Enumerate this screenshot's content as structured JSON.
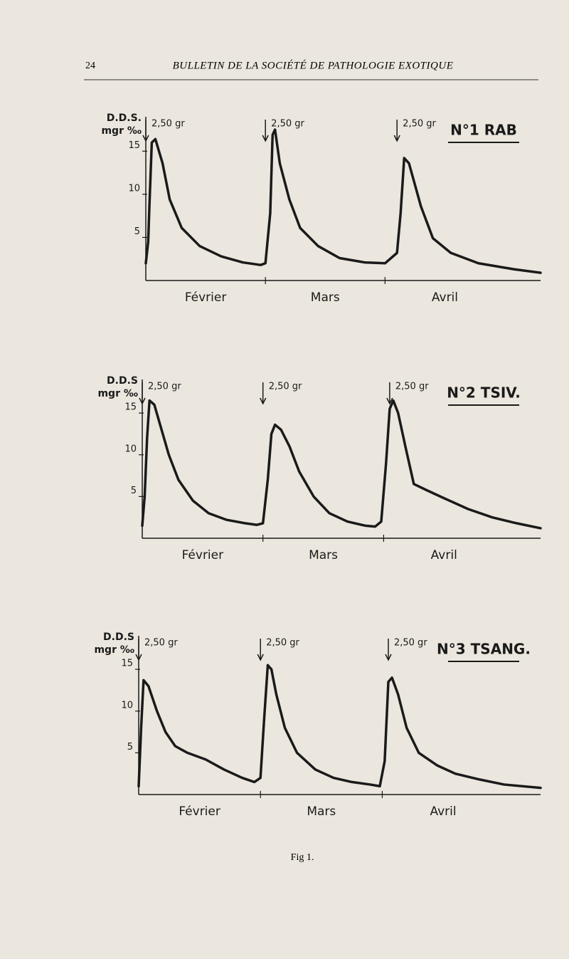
{
  "header": {
    "page_number": "24",
    "title": "BULLETIN DE LA SOCIÉTÉ DE PATHOLOGIE EXOTIQUE"
  },
  "chart_data": [
    {
      "type": "line",
      "title": "N°1 RAB",
      "ylabel": [
        "D.D.S.",
        "mgr ‰"
      ],
      "xlim": [
        0,
        3.3
      ],
      "xticks": [
        {
          "value": 0.5,
          "label": "Février"
        },
        {
          "value": 1.5,
          "label": "Mars"
        },
        {
          "value": 2.5,
          "label": "Avril"
        }
      ],
      "ylim": [
        0,
        18
      ],
      "yticks": [
        5,
        10,
        15
      ],
      "series": [
        {
          "color": "#1a1a1a",
          "x": [
            0,
            0.02,
            0.03,
            0.05,
            0.08,
            0.14,
            0.2,
            0.3,
            0.45,
            0.63,
            0.81,
            0.96,
            1.0,
            1.04,
            1.06,
            1.08,
            1.12,
            1.2,
            1.29,
            1.44,
            1.62,
            1.83,
            2.0,
            2.1,
            2.13,
            2.16,
            2.2,
            2.3,
            2.4,
            2.55,
            2.78,
            3.08,
            3.3
          ],
          "values": [
            2,
            4.5,
            8.6,
            16,
            16.4,
            13.6,
            9.4,
            6.1,
            4,
            2.8,
            2.1,
            1.8,
            2,
            7.8,
            16.9,
            17.5,
            13.6,
            9.4,
            6.1,
            4,
            2.6,
            2.1,
            2,
            3.2,
            7.8,
            14.2,
            13.6,
            8.6,
            4.9,
            3.2,
            2,
            1.3,
            0.9
          ]
        }
      ],
      "annotations": [
        {
          "x": 0,
          "label": "2,50 gr"
        },
        {
          "x": 1.0,
          "label": "2,50 gr"
        },
        {
          "x": 2.1,
          "label": "2,50 gr"
        }
      ]
    },
    {
      "type": "line",
      "title": "N°2 TSIV.",
      "ylabel": [
        "D.D.S",
        "mgr ‰"
      ],
      "xlim": [
        0,
        3.3
      ],
      "xticks": [
        {
          "value": 0.5,
          "label": "Février"
        },
        {
          "value": 1.5,
          "label": "Mars"
        },
        {
          "value": 2.5,
          "label": "Avril"
        }
      ],
      "ylim": [
        0,
        18
      ],
      "yticks": [
        5,
        10,
        15
      ],
      "series": [
        {
          "color": "#1a1a1a",
          "x": [
            0,
            0.02,
            0.04,
            0.06,
            0.1,
            0.15,
            0.22,
            0.3,
            0.42,
            0.55,
            0.7,
            0.85,
            0.95,
            1.0,
            1.04,
            1.07,
            1.1,
            1.15,
            1.22,
            1.3,
            1.42,
            1.55,
            1.7,
            1.85,
            1.93,
            1.98,
            2.02,
            2.05,
            2.08,
            2.12,
            2.18,
            2.25,
            2.35,
            2.5,
            2.7,
            2.9,
            3.1,
            3.3
          ],
          "values": [
            1.5,
            5,
            12,
            16.5,
            16,
            13.5,
            10,
            7,
            4.5,
            3,
            2.2,
            1.8,
            1.6,
            1.8,
            7,
            12.5,
            13.6,
            13,
            11,
            8,
            5,
            3,
            2,
            1.5,
            1.4,
            2,
            9,
            15.5,
            16.5,
            15,
            11,
            6.5,
            5.8,
            4.8,
            3.5,
            2.5,
            1.8,
            1.2
          ]
        }
      ],
      "annotations": [
        {
          "x": 0,
          "label": "2,50 gr"
        },
        {
          "x": 1.0,
          "label": "2,50 gr"
        },
        {
          "x": 2.05,
          "label": "2,50 gr"
        }
      ]
    },
    {
      "type": "line",
      "title": "N°3 TSANG.",
      "ylabel": [
        "D.D.S",
        "mgr ‰"
      ],
      "xlim": [
        0,
        3.3
      ],
      "xticks": [
        {
          "value": 0.5,
          "label": "Février"
        },
        {
          "value": 1.5,
          "label": "Mars"
        },
        {
          "value": 2.5,
          "label": "Avril"
        }
      ],
      "ylim": [
        0,
        18
      ],
      "yticks": [
        5,
        10,
        15
      ],
      "series": [
        {
          "color": "#1a1a1a",
          "x": [
            0,
            0.02,
            0.04,
            0.08,
            0.15,
            0.22,
            0.3,
            0.4,
            0.55,
            0.7,
            0.85,
            0.95,
            1.0,
            1.03,
            1.06,
            1.09,
            1.13,
            1.2,
            1.3,
            1.45,
            1.6,
            1.75,
            1.9,
            1.98,
            2.02,
            2.05,
            2.08,
            2.13,
            2.2,
            2.3,
            2.45,
            2.6,
            2.8,
            3.0,
            3.3
          ],
          "values": [
            1,
            8,
            13.7,
            13,
            10,
            7.5,
            5.8,
            5,
            4.2,
            3,
            2,
            1.5,
            2,
            9,
            15.5,
            15,
            12,
            8,
            5,
            3,
            2,
            1.5,
            1.2,
            1,
            4,
            13.5,
            14,
            12,
            8,
            5,
            3.5,
            2.5,
            1.8,
            1.2,
            0.8
          ]
        }
      ],
      "annotations": [
        {
          "x": 0,
          "label": "2,50 gr"
        },
        {
          "x": 1.0,
          "label": "2,50 gr"
        },
        {
          "x": 2.05,
          "label": "2,50 gr"
        }
      ]
    }
  ],
  "caption": "Fig 1."
}
